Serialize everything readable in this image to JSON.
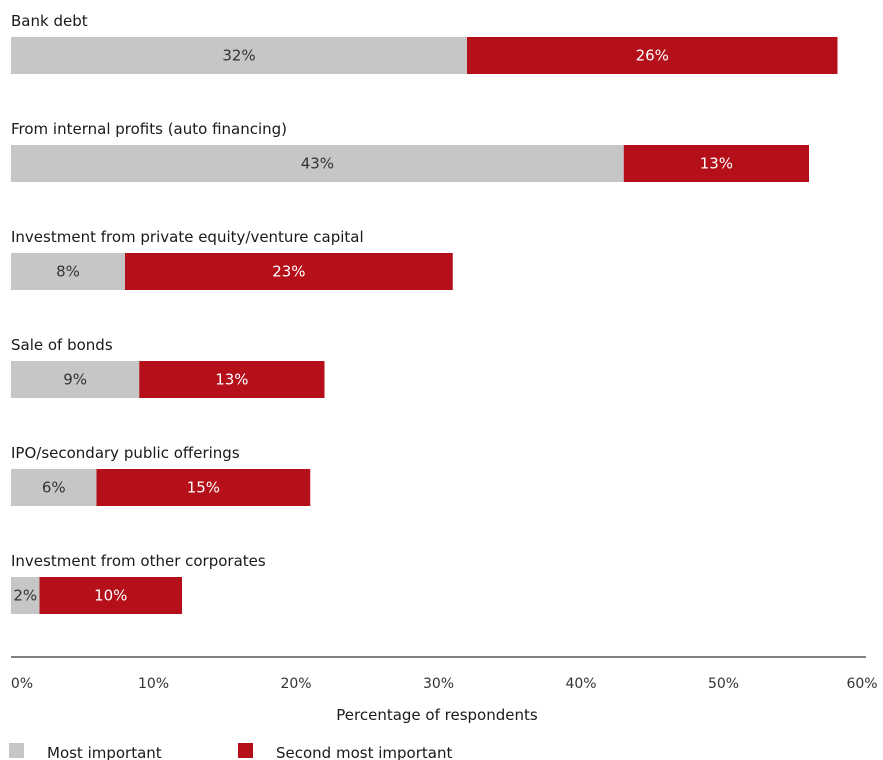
{
  "chart_data": {
    "type": "bar",
    "orientation": "horizontal",
    "stacked": true,
    "categories": [
      "Bank debt",
      "From internal profits (auto financing)",
      "Investment from private equity/venture capital",
      "Sale of bonds",
      "IPO/secondary public offerings",
      "Investment from other corporates"
    ],
    "series": [
      {
        "name": "Most important",
        "color": "#c6c6c6",
        "label_color": "#333333",
        "values": [
          32,
          43,
          8,
          9,
          6,
          2
        ]
      },
      {
        "name": "Second most important",
        "color": "#b50f1a",
        "label_color": "#ffffff",
        "values": [
          26,
          13,
          23,
          13,
          15,
          10
        ]
      }
    ],
    "value_suffix": "%",
    "xlabel": "Percentage of respondents",
    "xlim": [
      0,
      60
    ],
    "xticks": [
      "0%",
      "10%",
      "20%",
      "30%",
      "40%",
      "50%",
      "60%"
    ],
    "grid": false,
    "legend_position": "bottom-left"
  }
}
